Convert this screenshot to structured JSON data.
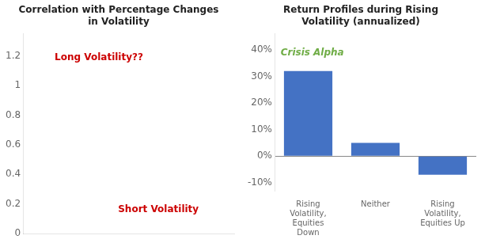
{
  "chart_data": [
    {
      "type": "line",
      "title": "Correlation with Percentage Changes\nin Volatility",
      "xlim": [
        0,
        1
      ],
      "ylim": [
        0,
        1.35
      ],
      "yticks": [
        0,
        0.2,
        0.4,
        0.6,
        0.8,
        1,
        1.2
      ],
      "grid": false,
      "tick_labels": "y",
      "annotations": [
        {
          "text": "Long Volatility??",
          "color": "#cc0000"
        },
        {
          "text": "Short Volatility",
          "color": "#cc0000"
        }
      ]
    },
    {
      "type": "bar",
      "title": "Return Profiles during Rising\nVolatility (annualized)",
      "categories": [
        "Rising\nVolatility,\nEquities\nDown",
        "Neither",
        "Rising\nVolatility,\nEquities Up"
      ],
      "values": [
        0.32,
        0.05,
        -0.07
      ],
      "color": "#4472C4",
      "ylim": [
        -0.13,
        0.46
      ],
      "yticks": [
        {
          "value": -0.1,
          "label": "-10%"
        },
        {
          "value": 0,
          "label": "0%"
        },
        {
          "value": 0.1,
          "label": "10%"
        },
        {
          "value": 0.2,
          "label": "20%"
        },
        {
          "value": 0.3,
          "label": "30%"
        },
        {
          "value": 0.4,
          "label": "40%"
        }
      ],
      "grid": false,
      "annotations": [
        {
          "text": "Crisis Alpha",
          "color": "#70AD47"
        }
      ]
    }
  ]
}
